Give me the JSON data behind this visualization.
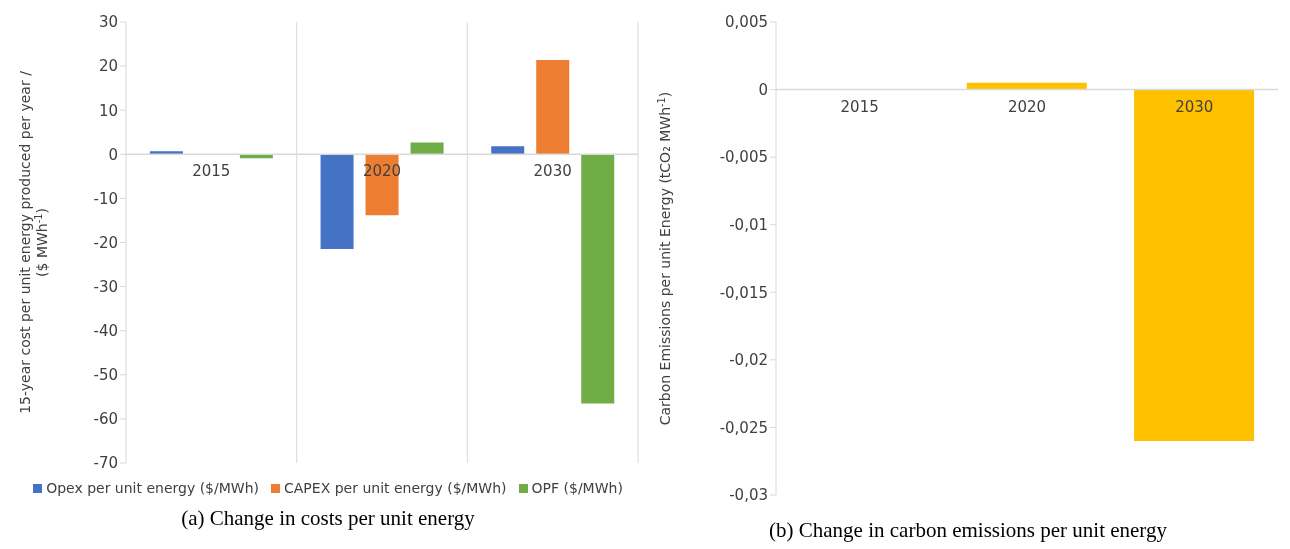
{
  "chart_data": [
    {
      "type": "bar",
      "categories": [
        "2015",
        "2020",
        "2030"
      ],
      "ylabel": "15-year cost per unit energy produced per year /\n($ MWh$^{-1}$)",
      "ylim": [
        -70,
        30
      ],
      "yticks": [
        -70,
        -60,
        -50,
        -40,
        -30,
        -20,
        -10,
        0,
        10,
        20,
        30
      ],
      "grid": "x",
      "legend": "bottom",
      "annotations": [
        "(a) Change in costs per unit energy"
      ],
      "series": [
        {
          "name": "Opex per unit energy ($/MWh)",
          "color": "#4472c4",
          "values": [
            0.7,
            -21.5,
            1.8
          ]
        },
        {
          "name": "CAPEX per unit energy ($/MWh)",
          "color": "#ed7d31",
          "values": [
            0,
            -13.8,
            21.4
          ]
        },
        {
          "name": "OPF ($/MWh)",
          "color": "#70ad47",
          "values": [
            -0.9,
            2.7,
            -56.5
          ]
        }
      ]
    },
    {
      "type": "bar",
      "categories": [
        "2015",
        "2020",
        "2030"
      ],
      "ylabel": "Carbon Emissions per unit Energy (tCO₂ MWh$^{-1}$)",
      "ylim": [
        -0.03,
        0.005
      ],
      "yticks": [
        {
          "value": -0.03,
          "label": "-0,03"
        },
        {
          "value": -0.025,
          "label": "-0,025"
        },
        {
          "value": -0.02,
          "label": "-0,02"
        },
        {
          "value": -0.015,
          "label": "-0,015"
        },
        {
          "value": -0.01,
          "label": "-0,01"
        },
        {
          "value": -0.005,
          "label": "-0,005"
        },
        {
          "value": 0,
          "label": "0"
        },
        {
          "value": 0.005,
          "label": "0,005"
        }
      ],
      "annotations": [
        "(b) Change in carbon emissions per unit energy"
      ],
      "series": [
        {
          "color": "#ffc000",
          "values": [
            0,
            0.0005,
            -0.026
          ]
        }
      ]
    }
  ]
}
